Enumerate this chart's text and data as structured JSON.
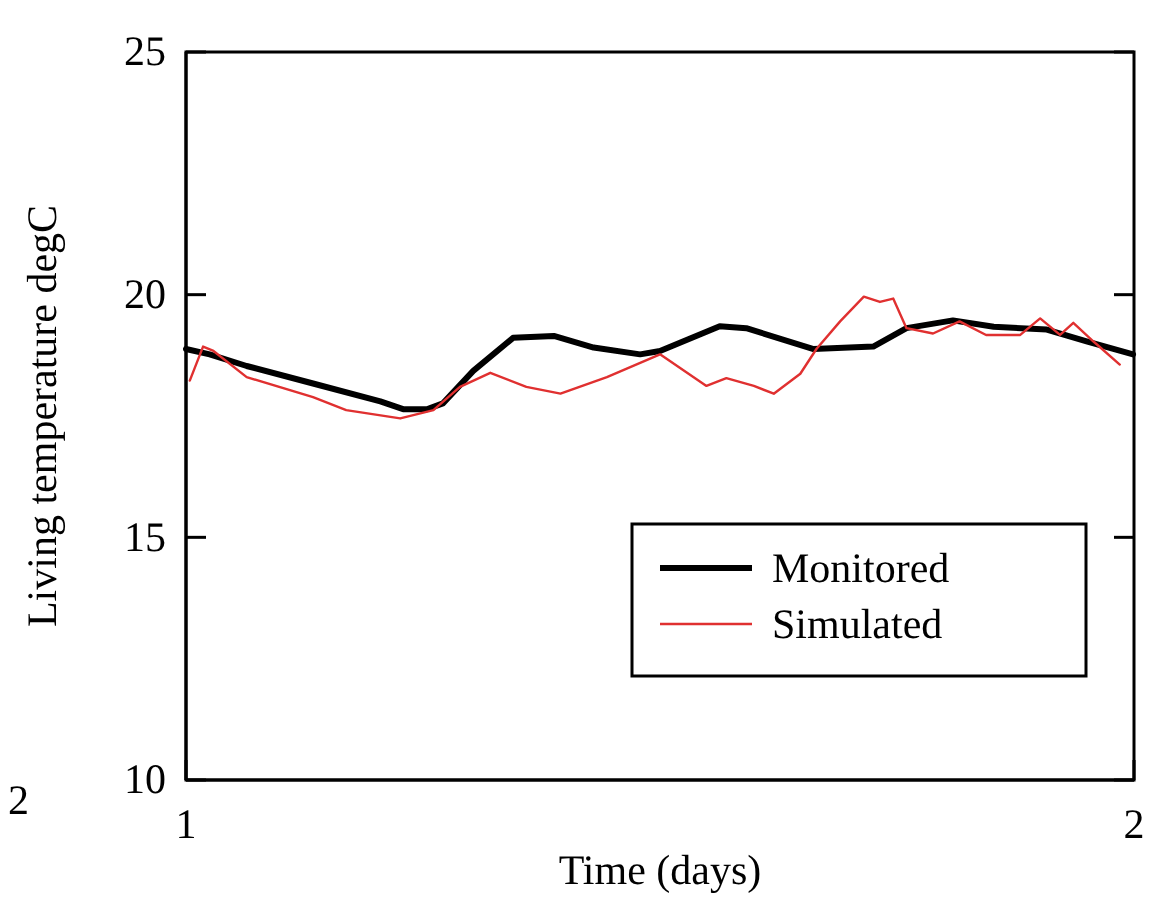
{
  "chart_data": {
    "type": "line",
    "xlabel": "Time (days)",
    "ylabel": "Living temperature degC",
    "xlim": [
      1,
      2
    ],
    "xticks": [
      1,
      2
    ],
    "ylim": [
      10,
      25
    ],
    "yticks": [
      10,
      15,
      20,
      25
    ],
    "legend": "bottom right",
    "grid": false,
    "annotations": [
      "2"
    ],
    "series": [
      {
        "name": "Monitored",
        "color": "#000000",
        "x": [
          1.0,
          1.025,
          1.064,
          1.134,
          1.205,
          1.229,
          1.254,
          1.271,
          1.303,
          1.345,
          1.388,
          1.43,
          1.479,
          1.5,
          1.563,
          1.591,
          1.662,
          1.725,
          1.76,
          1.809,
          1.852,
          1.908,
          1.95,
          1.999
        ],
        "values": [
          18.88,
          18.77,
          18.53,
          18.17,
          17.8,
          17.64,
          17.64,
          17.76,
          18.43,
          19.11,
          19.15,
          18.91,
          18.77,
          18.84,
          19.35,
          19.31,
          18.88,
          18.93,
          19.31,
          19.47,
          19.34,
          19.28,
          19.04,
          18.77
        ]
      },
      {
        "name": "Simulated",
        "color": "#e03030",
        "x": [
          1.004,
          1.018,
          1.029,
          1.064,
          1.134,
          1.169,
          1.226,
          1.261,
          1.289,
          1.321,
          1.359,
          1.395,
          1.444,
          1.5,
          1.549,
          1.57,
          1.599,
          1.62,
          1.648,
          1.665,
          1.69,
          1.715,
          1.732,
          1.746,
          1.76,
          1.788,
          1.816,
          1.844,
          1.88,
          1.901,
          1.922,
          1.936,
          1.957,
          1.985
        ],
        "values": [
          18.23,
          18.93,
          18.84,
          18.3,
          17.89,
          17.62,
          17.45,
          17.62,
          18.1,
          18.39,
          18.1,
          17.96,
          18.3,
          18.77,
          18.12,
          18.28,
          18.12,
          17.96,
          18.37,
          18.88,
          19.45,
          19.96,
          19.85,
          19.92,
          19.31,
          19.2,
          19.45,
          19.17,
          19.17,
          19.51,
          19.17,
          19.42,
          19.04,
          18.56
        ]
      }
    ]
  }
}
